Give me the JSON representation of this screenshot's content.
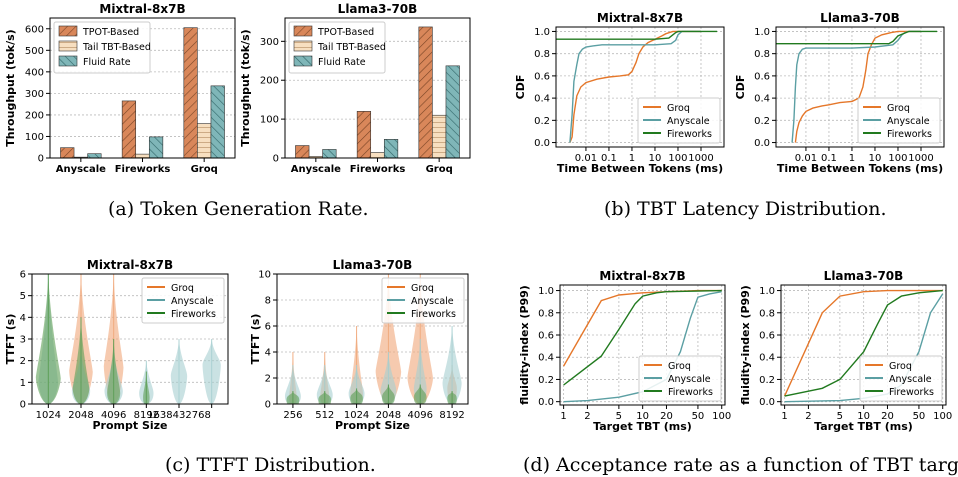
{
  "colors": {
    "tpot": "#d9875a",
    "tail": "#f7dfc0",
    "fluid": "#7fb6b8",
    "groq": "#e5772a",
    "anyscale": "#5b9fa3",
    "fireworks": "#217a1f",
    "violin_groq": "#f0a77a",
    "violin_anyscale": "#a7cfd0",
    "violin_fireworks": "#5d9e55"
  },
  "captions": {
    "a": "(a) Token Generation Rate.",
    "b": "(b) TBT Latency Distribution.",
    "c": "(c) TTFT Distribution.",
    "d": "(d) Acceptance rate as a function of TBT targe"
  },
  "chart_data": [
    {
      "id": "a1",
      "type": "bar",
      "title": "Mixtral-8x7B",
      "xlabel": "",
      "ylabel": "Throughput (tok/s)",
      "ylim": [
        0,
        650
      ],
      "yticks": [
        0,
        100,
        200,
        300,
        400,
        500,
        600
      ],
      "categories": [
        "Anyscale",
        "Fireworks",
        "Groq"
      ],
      "legend": "top-left",
      "grid": true,
      "series": [
        {
          "name": "TPOT-Based",
          "values": [
            48,
            265,
            605
          ]
        },
        {
          "name": "Tail TBT-Based",
          "values": [
            4,
            18,
            160
          ]
        },
        {
          "name": "Fluid Rate",
          "values": [
            20,
            98,
            335
          ]
        }
      ]
    },
    {
      "id": "a2",
      "type": "bar",
      "title": "Llama3-70B",
      "xlabel": "",
      "ylabel": "Throughput (tok/s)",
      "ylim": [
        0,
        360
      ],
      "yticks": [
        0,
        100,
        200,
        300
      ],
      "categories": [
        "Anyscale",
        "Fireworks",
        "Groq"
      ],
      "legend": "top-left",
      "grid": true,
      "series": [
        {
          "name": "TPOT-Based",
          "values": [
            32,
            120,
            337
          ]
        },
        {
          "name": "Tail TBT-Based",
          "values": [
            4,
            14,
            110
          ]
        },
        {
          "name": "Fluid Rate",
          "values": [
            22,
            48,
            237
          ]
        }
      ]
    },
    {
      "id": "b1",
      "type": "line",
      "title": "Mixtral-8x7B",
      "xlabel": "Time Between Tokens (ms)",
      "ylabel": "CDF",
      "xscale": "log",
      "xlim": [
        0.0005,
        10000
      ],
      "ylim": [
        -0.04,
        1.04
      ],
      "xticks": [
        0.01,
        0.1,
        1,
        10,
        100,
        1000
      ],
      "xticklabels": [
        "0.01",
        "0.1",
        "1",
        "10",
        "100",
        "1000"
      ],
      "yticks": [
        0.0,
        0.2,
        0.4,
        0.6,
        0.8,
        1.0
      ],
      "yticklabels": [
        "0.0",
        "0.2",
        "0.4",
        "0.6",
        "0.8",
        "1.0"
      ],
      "legend": "bottom-right",
      "grid": true,
      "series": [
        {
          "name": "Groq",
          "x": [
            0.002,
            0.0025,
            0.003,
            0.004,
            0.006,
            0.01,
            0.03,
            0.1,
            0.3,
            0.7,
            1,
            1.5,
            2,
            3,
            5,
            10,
            20,
            30,
            60,
            100,
            300,
            1000
          ],
          "y": [
            0,
            0.05,
            0.25,
            0.42,
            0.5,
            0.54,
            0.57,
            0.59,
            0.6,
            0.61,
            0.64,
            0.72,
            0.8,
            0.86,
            0.9,
            0.93,
            0.96,
            0.98,
            1.0,
            1.0,
            1.0,
            1.0
          ]
        },
        {
          "name": "Anyscale",
          "x": [
            0.002,
            0.0025,
            0.003,
            0.004,
            0.005,
            0.007,
            0.01,
            0.02,
            0.05,
            0.1,
            1,
            10,
            50,
            80,
            100,
            150,
            300,
            1000
          ],
          "y": [
            0,
            0.25,
            0.55,
            0.7,
            0.8,
            0.84,
            0.86,
            0.87,
            0.88,
            0.88,
            0.88,
            0.88,
            0.89,
            0.92,
            0.97,
            1.0,
            1.0,
            1.0
          ]
        },
        {
          "name": "Fireworks",
          "x": [
            0.0005,
            0.01,
            0.1,
            1,
            10,
            40,
            60,
            80,
            100,
            200,
            1000,
            5000
          ],
          "y": [
            0.93,
            0.93,
            0.93,
            0.93,
            0.93,
            0.94,
            0.97,
            0.99,
            1.0,
            1.0,
            1.0,
            1.0
          ]
        }
      ]
    },
    {
      "id": "b2",
      "type": "line",
      "title": "Llama3-70B",
      "xlabel": "Time Between Tokens (ms)",
      "ylabel": "CDF",
      "xscale": "log",
      "xlim": [
        0.0005,
        10000
      ],
      "ylim": [
        -0.04,
        1.04
      ],
      "xticks": [
        0.01,
        0.1,
        1,
        10,
        100,
        1000
      ],
      "xticklabels": [
        "0.01",
        "0.1",
        "1",
        "10",
        "100",
        "1000"
      ],
      "yticks": [
        0.0,
        0.2,
        0.4,
        0.6,
        0.8,
        1.0
      ],
      "yticklabels": [
        "0.0",
        "0.2",
        "0.4",
        "0.6",
        "0.8",
        "1.0"
      ],
      "legend": "bottom-right",
      "grid": true,
      "series": [
        {
          "name": "Groq",
          "x": [
            0.0035,
            0.004,
            0.005,
            0.007,
            0.01,
            0.02,
            0.05,
            0.1,
            0.3,
            1,
            2,
            3,
            4,
            5,
            7,
            10,
            20,
            50,
            100,
            300,
            1000
          ],
          "y": [
            0,
            0.1,
            0.18,
            0.24,
            0.28,
            0.31,
            0.33,
            0.34,
            0.36,
            0.37,
            0.4,
            0.5,
            0.65,
            0.8,
            0.88,
            0.94,
            0.97,
            0.99,
            1.0,
            1.0,
            1.0
          ]
        },
        {
          "name": "Anyscale",
          "x": [
            0.0025,
            0.003,
            0.0035,
            0.004,
            0.005,
            0.007,
            0.01,
            0.1,
            1,
            10,
            60,
            100,
            150,
            200,
            300,
            1000
          ],
          "y": [
            0,
            0.2,
            0.5,
            0.7,
            0.8,
            0.84,
            0.85,
            0.85,
            0.85,
            0.86,
            0.88,
            0.92,
            0.97,
            0.99,
            1.0,
            1.0
          ]
        },
        {
          "name": "Fireworks",
          "x": [
            0.0005,
            0.01,
            0.1,
            1,
            10,
            40,
            60,
            100,
            300,
            1000,
            5000
          ],
          "y": [
            0.89,
            0.89,
            0.89,
            0.89,
            0.89,
            0.89,
            0.91,
            0.96,
            1.0,
            1.0,
            1.0
          ]
        }
      ]
    },
    {
      "id": "c1",
      "type": "violin",
      "title": "Mixtral-8x7B",
      "xlabel": "Prompt Size",
      "ylabel": "TTFT (s)",
      "ylim": [
        0,
        6
      ],
      "yticks": [
        0,
        1,
        2,
        3,
        4,
        5,
        6
      ],
      "categories": [
        "1024",
        "2048",
        "4096",
        "8192",
        "16384",
        "32768"
      ],
      "tick_labels": [
        "1024",
        "2048",
        "4096",
        "8192",
        "1638432768",
        ""
      ],
      "legend": "top-right",
      "grid": true,
      "series": [
        {
          "name": "Groq",
          "category_index": [
            1,
            2
          ],
          "median": [
            1.5,
            1.7
          ],
          "max": [
            6.0,
            6.0
          ],
          "width": [
            0.36,
            0.3
          ]
        },
        {
          "name": "Anyscale",
          "category_index": [
            0,
            1,
            2,
            3,
            4,
            5
          ],
          "median": [
            1.0,
            0.6,
            0.6,
            0.5,
            1.3,
            1.8
          ],
          "max": [
            6.0,
            2.5,
            2.5,
            2.0,
            3.0,
            3.0
          ],
          "width": [
            0.3,
            0.28,
            0.28,
            0.22,
            0.25,
            0.28
          ]
        },
        {
          "name": "Fireworks",
          "category_index": [
            0,
            1,
            2,
            3
          ],
          "median": [
            1.2,
            0.7,
            0.5,
            0.3
          ],
          "max": [
            6.0,
            4.0,
            3.0,
            1.5
          ],
          "width": [
            0.38,
            0.25,
            0.2,
            0.1
          ]
        }
      ]
    },
    {
      "id": "c2",
      "type": "violin",
      "title": "Llama3-70B",
      "xlabel": "Prompt Size",
      "ylabel": "TTFT (s)",
      "ylim": [
        0,
        10
      ],
      "yticks": [
        0,
        2,
        4,
        6,
        8,
        10
      ],
      "categories": [
        "256",
        "512",
        "1024",
        "2048",
        "4096",
        "8192"
      ],
      "tick_labels": [
        "256",
        "512",
        "1024",
        "2048",
        "4096",
        "8192"
      ],
      "legend": "top-right",
      "grid": true,
      "series": [
        {
          "name": "Groq",
          "category_index": [
            0,
            1,
            2,
            3,
            4,
            5
          ],
          "median": [
            0.5,
            0.6,
            0.8,
            2.5,
            2.0,
            1.2
          ],
          "max": [
            4.0,
            4.0,
            6.0,
            10.0,
            10.0,
            3.0
          ],
          "width": [
            0.12,
            0.14,
            0.2,
            0.4,
            0.4,
            0.15
          ]
        },
        {
          "name": "Anyscale",
          "category_index": [
            0,
            1,
            2,
            3,
            4,
            5
          ],
          "median": [
            0.6,
            0.7,
            0.8,
            1.0,
            1.2,
            1.6
          ],
          "max": [
            3.0,
            3.0,
            3.0,
            4.0,
            5.0,
            6.0
          ],
          "width": [
            0.25,
            0.25,
            0.25,
            0.25,
            0.2,
            0.3
          ]
        },
        {
          "name": "Fireworks",
          "category_index": [
            0,
            1,
            2,
            3,
            4,
            5
          ],
          "median": [
            0.3,
            0.3,
            0.4,
            0.5,
            0.5,
            0.4
          ],
          "max": [
            1.0,
            1.0,
            1.2,
            1.5,
            1.5,
            1.0
          ],
          "width": [
            0.2,
            0.2,
            0.2,
            0.2,
            0.2,
            0.15
          ]
        }
      ]
    },
    {
      "id": "d1",
      "type": "line",
      "title": "Mixtral-8x7B",
      "xlabel": "Target TBT (ms)",
      "ylabel": "fluidity-index  (P99)",
      "xscale": "log",
      "xlim": [
        0.9,
        110
      ],
      "ylim": [
        -0.03,
        1.05
      ],
      "xticks": [
        1,
        2,
        5,
        10,
        20,
        50,
        100
      ],
      "xticklabels": [
        "1",
        "2",
        "5",
        "10",
        "20",
        "50",
        "100"
      ],
      "yticks": [
        0.0,
        0.2,
        0.4,
        0.6,
        0.8,
        1.0
      ],
      "yticklabels": [
        "0.0",
        "0.2",
        "0.4",
        "0.6",
        "0.8",
        "1.0"
      ],
      "legend": "bottom-right",
      "grid": true,
      "series": [
        {
          "name": "Groq",
          "x": [
            1,
            3,
            5,
            10,
            20,
            50,
            100
          ],
          "y": [
            0.32,
            0.91,
            0.96,
            0.98,
            0.99,
            1.0,
            1.0
          ]
        },
        {
          "name": "Anyscale",
          "x": [
            1,
            2,
            5,
            10,
            20,
            30,
            40,
            50,
            70,
            100
          ],
          "y": [
            0.0,
            0.01,
            0.04,
            0.09,
            0.2,
            0.45,
            0.75,
            0.94,
            0.97,
            0.99
          ]
        },
        {
          "name": "Fireworks",
          "x": [
            1,
            3,
            5,
            8,
            10,
            15,
            20,
            50,
            100
          ],
          "y": [
            0.15,
            0.41,
            0.65,
            0.88,
            0.95,
            0.98,
            0.99,
            0.995,
            1.0
          ]
        }
      ]
    },
    {
      "id": "d2",
      "type": "line",
      "title": "Llama3-70B",
      "xlabel": "Target TBT (ms)",
      "ylabel": "fluidity-index  (P99)",
      "xscale": "log",
      "xlim": [
        0.9,
        110
      ],
      "ylim": [
        -0.03,
        1.05
      ],
      "xticks": [
        1,
        2,
        5,
        10,
        20,
        50,
        100
      ],
      "xticklabels": [
        "1",
        "2",
        "5",
        "10",
        "20",
        "50",
        "100"
      ],
      "yticks": [
        0.0,
        0.2,
        0.4,
        0.6,
        0.8,
        1.0
      ],
      "yticklabels": [
        "0.0",
        "0.2",
        "0.4",
        "0.6",
        "0.8",
        "1.0"
      ],
      "legend": "bottom-right",
      "grid": true,
      "series": [
        {
          "name": "Groq",
          "x": [
            1,
            3,
            5,
            10,
            20,
            50,
            100
          ],
          "y": [
            0.05,
            0.8,
            0.95,
            0.99,
            1.0,
            1.0,
            1.0
          ]
        },
        {
          "name": "Anyscale",
          "x": [
            1,
            5,
            10,
            20,
            30,
            50,
            70,
            100
          ],
          "y": [
            0.0,
            0.01,
            0.03,
            0.07,
            0.15,
            0.45,
            0.8,
            0.97
          ]
        },
        {
          "name": "Fireworks",
          "x": [
            1,
            3,
            5,
            10,
            15,
            20,
            30,
            50,
            100
          ],
          "y": [
            0.05,
            0.12,
            0.2,
            0.45,
            0.7,
            0.87,
            0.95,
            0.98,
            1.0
          ]
        }
      ]
    }
  ]
}
